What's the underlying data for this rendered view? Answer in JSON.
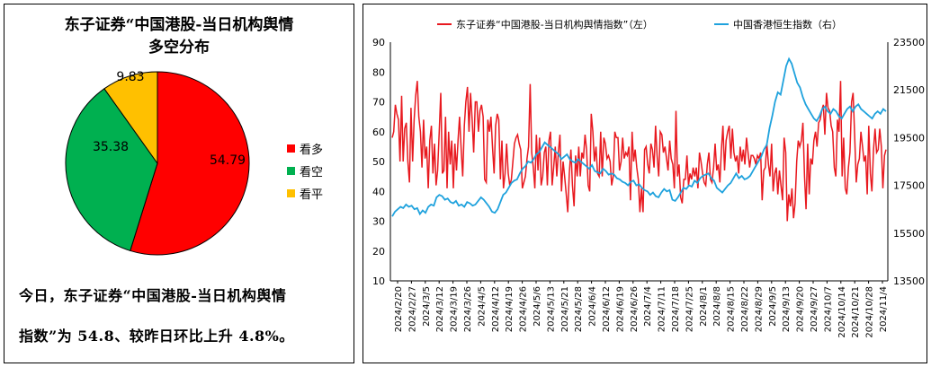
{
  "left": {
    "title_line1": "东子证券“中国港股-当日机构舆情",
    "title_line2": "多空分布",
    "summary_line1": "今日，东子证券“中国港股-当日机构舆情",
    "summary_line2": "指数”为 54.8、较昨日环比上升 4.8%。"
  },
  "chart_data": [
    {
      "type": "pie",
      "title": "东子证券“中国港股-当日机构舆情多空分布",
      "labels": [
        "看多",
        "看空",
        "看平"
      ],
      "values": [
        54.79,
        35.38,
        9.83
      ],
      "value_labels": [
        "54.79",
        "35.38",
        "9.83"
      ],
      "colors": [
        "#FF0000",
        "#00B050",
        "#FFC000"
      ],
      "legend_position": "right"
    },
    {
      "type": "line",
      "legend": [
        "东子证券“中国港股-当日机构舆情指数”（左）",
        "中国香港恒生指数（右）"
      ],
      "x_ticks": [
        "2024/2/20",
        "2024/2/27",
        "2024/3/5",
        "2024/3/12",
        "2024/3/19",
        "2024/3/26",
        "2024/4/5",
        "2024/4/12",
        "2024/4/19",
        "2024/4/26",
        "2024/5/6",
        "2024/5/13",
        "2024/5/21",
        "2024/5/28",
        "2024/6/4",
        "2024/6/12",
        "2024/6/19",
        "2024/6/26",
        "2024/7/4",
        "2024/7/11",
        "2024/7/18",
        "2024/7/25",
        "2024/8/1",
        "2024/8/8",
        "2024/8/15",
        "2024/8/22",
        "2024/8/29",
        "2024/9/5",
        "2024/9/13",
        "2024/9/20",
        "2024/9/27",
        "2024/10/7",
        "2024/10/14",
        "2024/10/21",
        "2024/10/28",
        "2024/11/4"
      ],
      "y_left_ticks": [
        "10",
        "20",
        "30",
        "40",
        "50",
        "60",
        "70",
        "80",
        "90"
      ],
      "y_right_ticks": [
        "13500",
        "15500",
        "17500",
        "19500",
        "21500",
        "23500"
      ],
      "y_left_range": [
        10,
        90
      ],
      "y_right_range": [
        13500,
        23500
      ],
      "legend_position": "top",
      "series": [
        {
          "name": "东子证券“中国港股-当日机构舆情指数”（左）",
          "color": "#E8191F",
          "axis": "left",
          "values": [
            58,
            60,
            69,
            66,
            64,
            50,
            72,
            50,
            61,
            63,
            50,
            43,
            68,
            50,
            64,
            72,
            77,
            65,
            60,
            48,
            64,
            51,
            55,
            41,
            57,
            62,
            46,
            56,
            42,
            47,
            60,
            73,
            46,
            47,
            65,
            41,
            60,
            49,
            57,
            41,
            56,
            47,
            57,
            65,
            54,
            45,
            62,
            70,
            75,
            60,
            73,
            64,
            53,
            70,
            70,
            60,
            67,
            69,
            65,
            44,
            43,
            64,
            60,
            65,
            55,
            46,
            62,
            66,
            64,
            44,
            57,
            41,
            46,
            56,
            46,
            42,
            44,
            50,
            56,
            58,
            59,
            56,
            54,
            41,
            43,
            45,
            51,
            55,
            76,
            53,
            48,
            41,
            59,
            47,
            58,
            42,
            45,
            53,
            55,
            42,
            57,
            60,
            42,
            48,
            55,
            45,
            53,
            59,
            40,
            50,
            45,
            39,
            33,
            46,
            54,
            42,
            35,
            52,
            45,
            55,
            45,
            53,
            51,
            59,
            54,
            42,
            40,
            66,
            60,
            50,
            55,
            46,
            45,
            60,
            45,
            58,
            56,
            51,
            52,
            50,
            42,
            45,
            60,
            58,
            58,
            47,
            50,
            58,
            51,
            53,
            52,
            55,
            37,
            60,
            50,
            54,
            48,
            44,
            33,
            41,
            33,
            54,
            55,
            49,
            46,
            56,
            54,
            48,
            62,
            52,
            45,
            60,
            59,
            53,
            55,
            51,
            47,
            57,
            51,
            49,
            41,
            67,
            45,
            49,
            38,
            36,
            44,
            44,
            52,
            42,
            46,
            44,
            48,
            45,
            48,
            41,
            53,
            50,
            46,
            43,
            42,
            49,
            53,
            44,
            43,
            48,
            56,
            47,
            49,
            43,
            54,
            62,
            47,
            57,
            60,
            62,
            51,
            61,
            53,
            50,
            52,
            46,
            55,
            50,
            54,
            49,
            58,
            53,
            48,
            52,
            52,
            51,
            49,
            52,
            51,
            53,
            37,
            47,
            48,
            56,
            49,
            45,
            56,
            40,
            46,
            48,
            39,
            47,
            42,
            37,
            58,
            53,
            30,
            39,
            35,
            41,
            31,
            36,
            50,
            57,
            55,
            57,
            63,
            45,
            34,
            56,
            39,
            51,
            49,
            57,
            60,
            55,
            63,
            64,
            67,
            69,
            59,
            73,
            68,
            67,
            62,
            60,
            48,
            45,
            64,
            60,
            77,
            45,
            58,
            41,
            39,
            48,
            53,
            70,
            73,
            59,
            43,
            49,
            51,
            60,
            55,
            50,
            52,
            39,
            62,
            46,
            40,
            54,
            61,
            53,
            54,
            61,
            55,
            41,
            52,
            54
          ],
          "note_values_sampled": true
        },
        {
          "name": "中国香港恒生指数（右）",
          "color": "#1FA2DD",
          "axis": "right",
          "values": [
            16200,
            16400,
            16500,
            16600,
            16550,
            16700,
            16600,
            16650,
            16500,
            16550,
            16300,
            16450,
            16350,
            16600,
            16700,
            16650,
            17000,
            17100,
            17050,
            16900,
            16950,
            16800,
            16750,
            16850,
            16650,
            16700,
            16600,
            16800,
            16750,
            16650,
            16700,
            16850,
            17000,
            16900,
            16750,
            16600,
            16400,
            16350,
            16500,
            16800,
            17100,
            17200,
            17400,
            17600,
            17700,
            17750,
            18000,
            18200,
            18300,
            18500,
            18450,
            18600,
            18800,
            18900,
            19100,
            19300,
            19200,
            19100,
            19000,
            18900,
            18800,
            18600,
            18700,
            18800,
            18600,
            18500,
            18450,
            18600,
            18500,
            18400,
            18300,
            18200,
            18350,
            18100,
            18050,
            18000,
            18200,
            18100,
            17950,
            18000,
            17950,
            17800,
            17750,
            17650,
            17600,
            17500,
            17650,
            17700,
            17500,
            17550,
            17400,
            17300,
            17250,
            17100,
            17200,
            17050,
            17000,
            17200,
            17350,
            17250,
            17300,
            16900,
            16850,
            17000,
            17200,
            17400,
            17350,
            17500,
            17450,
            17700,
            17600,
            17800,
            17900,
            17950,
            18000,
            17800,
            17700,
            17400,
            17300,
            17200,
            17350,
            17500,
            17600,
            17800,
            18000,
            17800,
            17900,
            17750,
            17800,
            17900,
            18100,
            18300,
            18500,
            18700,
            19000,
            19200,
            19900,
            20400,
            21000,
            21400,
            21300,
            21900,
            22500,
            22800,
            22600,
            22200,
            21800,
            21600,
            21200,
            20900,
            20700,
            20500,
            20300,
            20200,
            20400,
            20700,
            20800,
            20600,
            20500,
            20700,
            20600,
            20400,
            20300,
            20500,
            20700,
            20800,
            20600,
            20800,
            20900,
            20700,
            20600,
            20500,
            20400,
            20300,
            20500,
            20600,
            20500,
            20700,
            20600
          ]
        }
      ]
    }
  ]
}
